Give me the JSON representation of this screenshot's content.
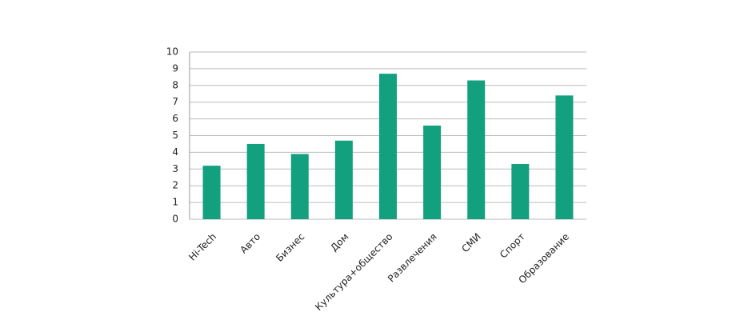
{
  "chart_data": {
    "type": "bar",
    "categories": [
      "Hi-Tech",
      "Авто",
      "Бизнес",
      "Дом",
      "Культура+общество",
      "Развлечения",
      "СМИ",
      "Спорт",
      "Образование"
    ],
    "values": [
      3.2,
      4.5,
      3.9,
      4.7,
      8.7,
      5.6,
      8.3,
      3.3,
      7.4
    ],
    "color": "#13a07f",
    "ylim": [
      0,
      10
    ],
    "yticks": [
      0,
      1,
      2,
      3,
      4,
      5,
      6,
      7,
      8,
      9,
      10
    ],
    "grid": true
  }
}
